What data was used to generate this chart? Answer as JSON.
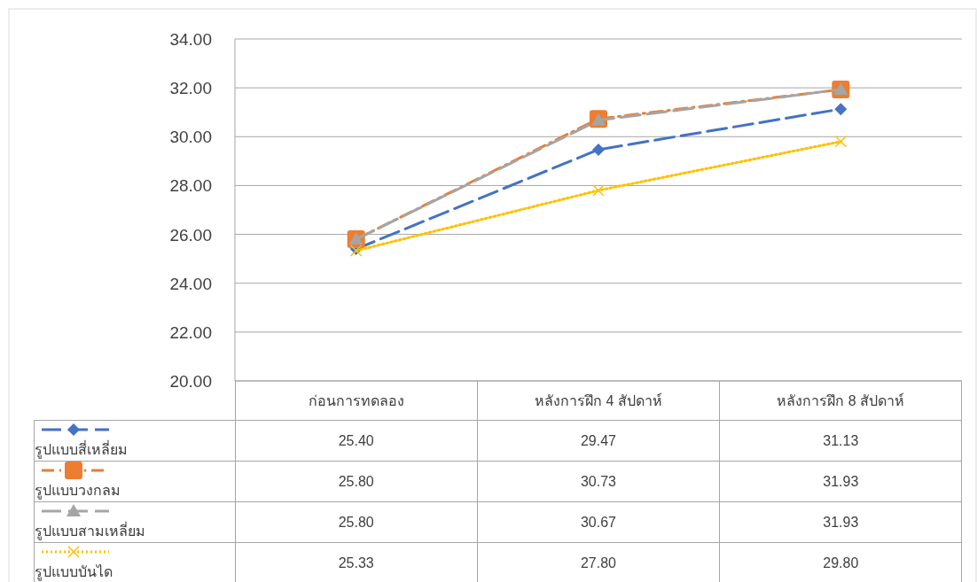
{
  "chart_data": {
    "type": "line",
    "categories": [
      "ก่อนการทดลอง",
      "หลังการฝึก 4 สัปดาห์",
      "หลังการฝึก 8 สัปดาห์"
    ],
    "ylim": [
      20,
      34
    ],
    "yticks": [
      {
        "value": 20,
        "label": "20.00"
      },
      {
        "value": 22,
        "label": "22.00"
      },
      {
        "value": 24,
        "label": "24.00"
      },
      {
        "value": 26,
        "label": "26.00"
      },
      {
        "value": 28,
        "label": "28.00"
      },
      {
        "value": 30,
        "label": "30.00"
      },
      {
        "value": 32,
        "label": "32.00"
      },
      {
        "value": 34,
        "label": "34.00"
      }
    ],
    "grid": "y",
    "legend": "bottom",
    "series": [
      {
        "name": "รูปแบบสี่เหลี่ยม",
        "color": "#4472c4",
        "values": [
          25.4,
          29.47,
          31.13
        ],
        "value_labels": [
          "25.40",
          "29.47",
          "31.13"
        ],
        "marker": "diamond",
        "line_style": "dashed"
      },
      {
        "name": "รูปแบบวงกลม",
        "color": "#ed7d31",
        "values": [
          25.8,
          30.73,
          31.93
        ],
        "value_labels": [
          "25.80",
          "30.73",
          "31.93"
        ],
        "marker": "square",
        "line_style": "dashdot"
      },
      {
        "name": "รูปแบบสามเหลี่ยม",
        "color": "#a5a5a5",
        "values": [
          25.8,
          30.67,
          31.93
        ],
        "value_labels": [
          "25.80",
          "30.67",
          "31.93"
        ],
        "marker": "triangle",
        "line_style": "dashed"
      },
      {
        "name": "รูปแบบบันได",
        "color": "#ffc000",
        "values": [
          25.33,
          27.8,
          29.8
        ],
        "value_labels": [
          "25.33",
          "27.80",
          "29.80"
        ],
        "marker": "cross",
        "line_style": "dotted"
      }
    ]
  }
}
